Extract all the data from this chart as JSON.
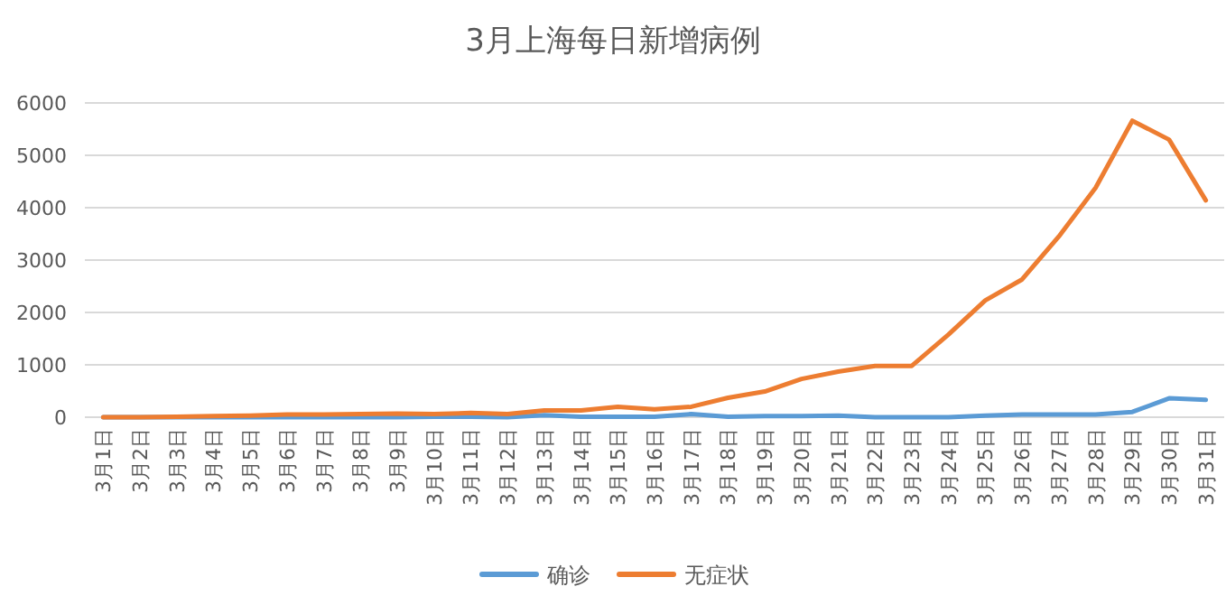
{
  "chart_data": {
    "type": "line",
    "title": "3月上海每日新增病例",
    "categories": [
      "3月1日",
      "3月2日",
      "3月3日",
      "3月4日",
      "3月5日",
      "3月6日",
      "3月7日",
      "3月8日",
      "3月9日",
      "3月10日",
      "3月11日",
      "3月12日",
      "3月13日",
      "3月14日",
      "3月15日",
      "3月16日",
      "3月17日",
      "3月18日",
      "3月19日",
      "3月20日",
      "3月21日",
      "3月22日",
      "3月23日",
      "3月24日",
      "3月25日",
      "3月26日",
      "3月27日",
      "3月28日",
      "3月29日",
      "3月30日",
      "3月31日"
    ],
    "series": [
      {
        "name": "确诊",
        "color": "#5b9bd5",
        "values": [
          0,
          0,
          0,
          0,
          0,
          0,
          0,
          0,
          0,
          10,
          10,
          0,
          40,
          10,
          10,
          10,
          60,
          10,
          20,
          20,
          30,
          0,
          0,
          0,
          30,
          50,
          50,
          50,
          100,
          360,
          330
        ]
      },
      {
        "name": "无症状",
        "color": "#ed7d31",
        "values": [
          0,
          0,
          10,
          20,
          30,
          50,
          50,
          60,
          70,
          60,
          80,
          60,
          130,
          130,
          200,
          150,
          200,
          370,
          490,
          730,
          870,
          980,
          980,
          1580,
          2230,
          2630,
          3450,
          4380,
          5660,
          5300,
          4140
        ]
      }
    ],
    "ylim": [
      0,
      6000
    ],
    "yticks": [
      0,
      1000,
      2000,
      3000,
      4000,
      5000,
      6000
    ],
    "grid": "y",
    "legend": "bottom",
    "marker": "none",
    "line_style": "solid"
  }
}
